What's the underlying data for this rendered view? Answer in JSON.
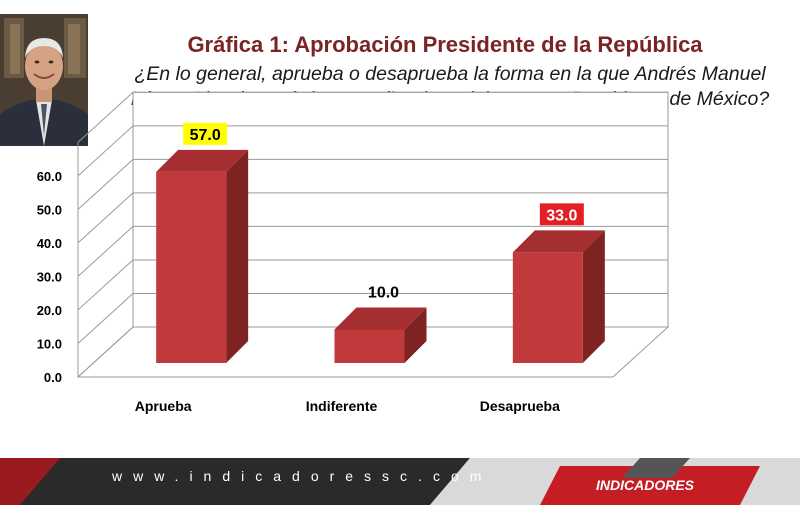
{
  "header": {
    "title": "Gráfica 1: Aprobación Presidente de la República",
    "question_line1": "¿En lo general, aprueba o desaprueba la forma en la que Andrés Manuel",
    "question_line2": "López Obradorestá desempeñando su labor como Presidente de México?"
  },
  "footer": {
    "url": "www.indicadoressc.com",
    "brand": "INDICADORES"
  },
  "colors": {
    "bar_front": "#c0393b",
    "bar_side": "#7f2222",
    "bar_top": "#a52e30",
    "label_highlight_yellow": "#ffff00",
    "label_highlight_red": "#e31f26"
  },
  "chart_data": {
    "type": "bar",
    "categories": [
      "Aprueba",
      "Indiferente",
      "Desaprueba"
    ],
    "values": [
      57.0,
      10.0,
      33.0
    ],
    "value_labels": [
      "57.0",
      "10.0",
      "33.0"
    ],
    "label_styles": [
      "yellow",
      "plain",
      "red"
    ],
    "yticks": [
      "0.0",
      "10.0",
      "20.0",
      "30.0",
      "40.0",
      "50.0",
      "60.0"
    ],
    "ylim": [
      0,
      70
    ],
    "grid": true,
    "three_d": true
  }
}
